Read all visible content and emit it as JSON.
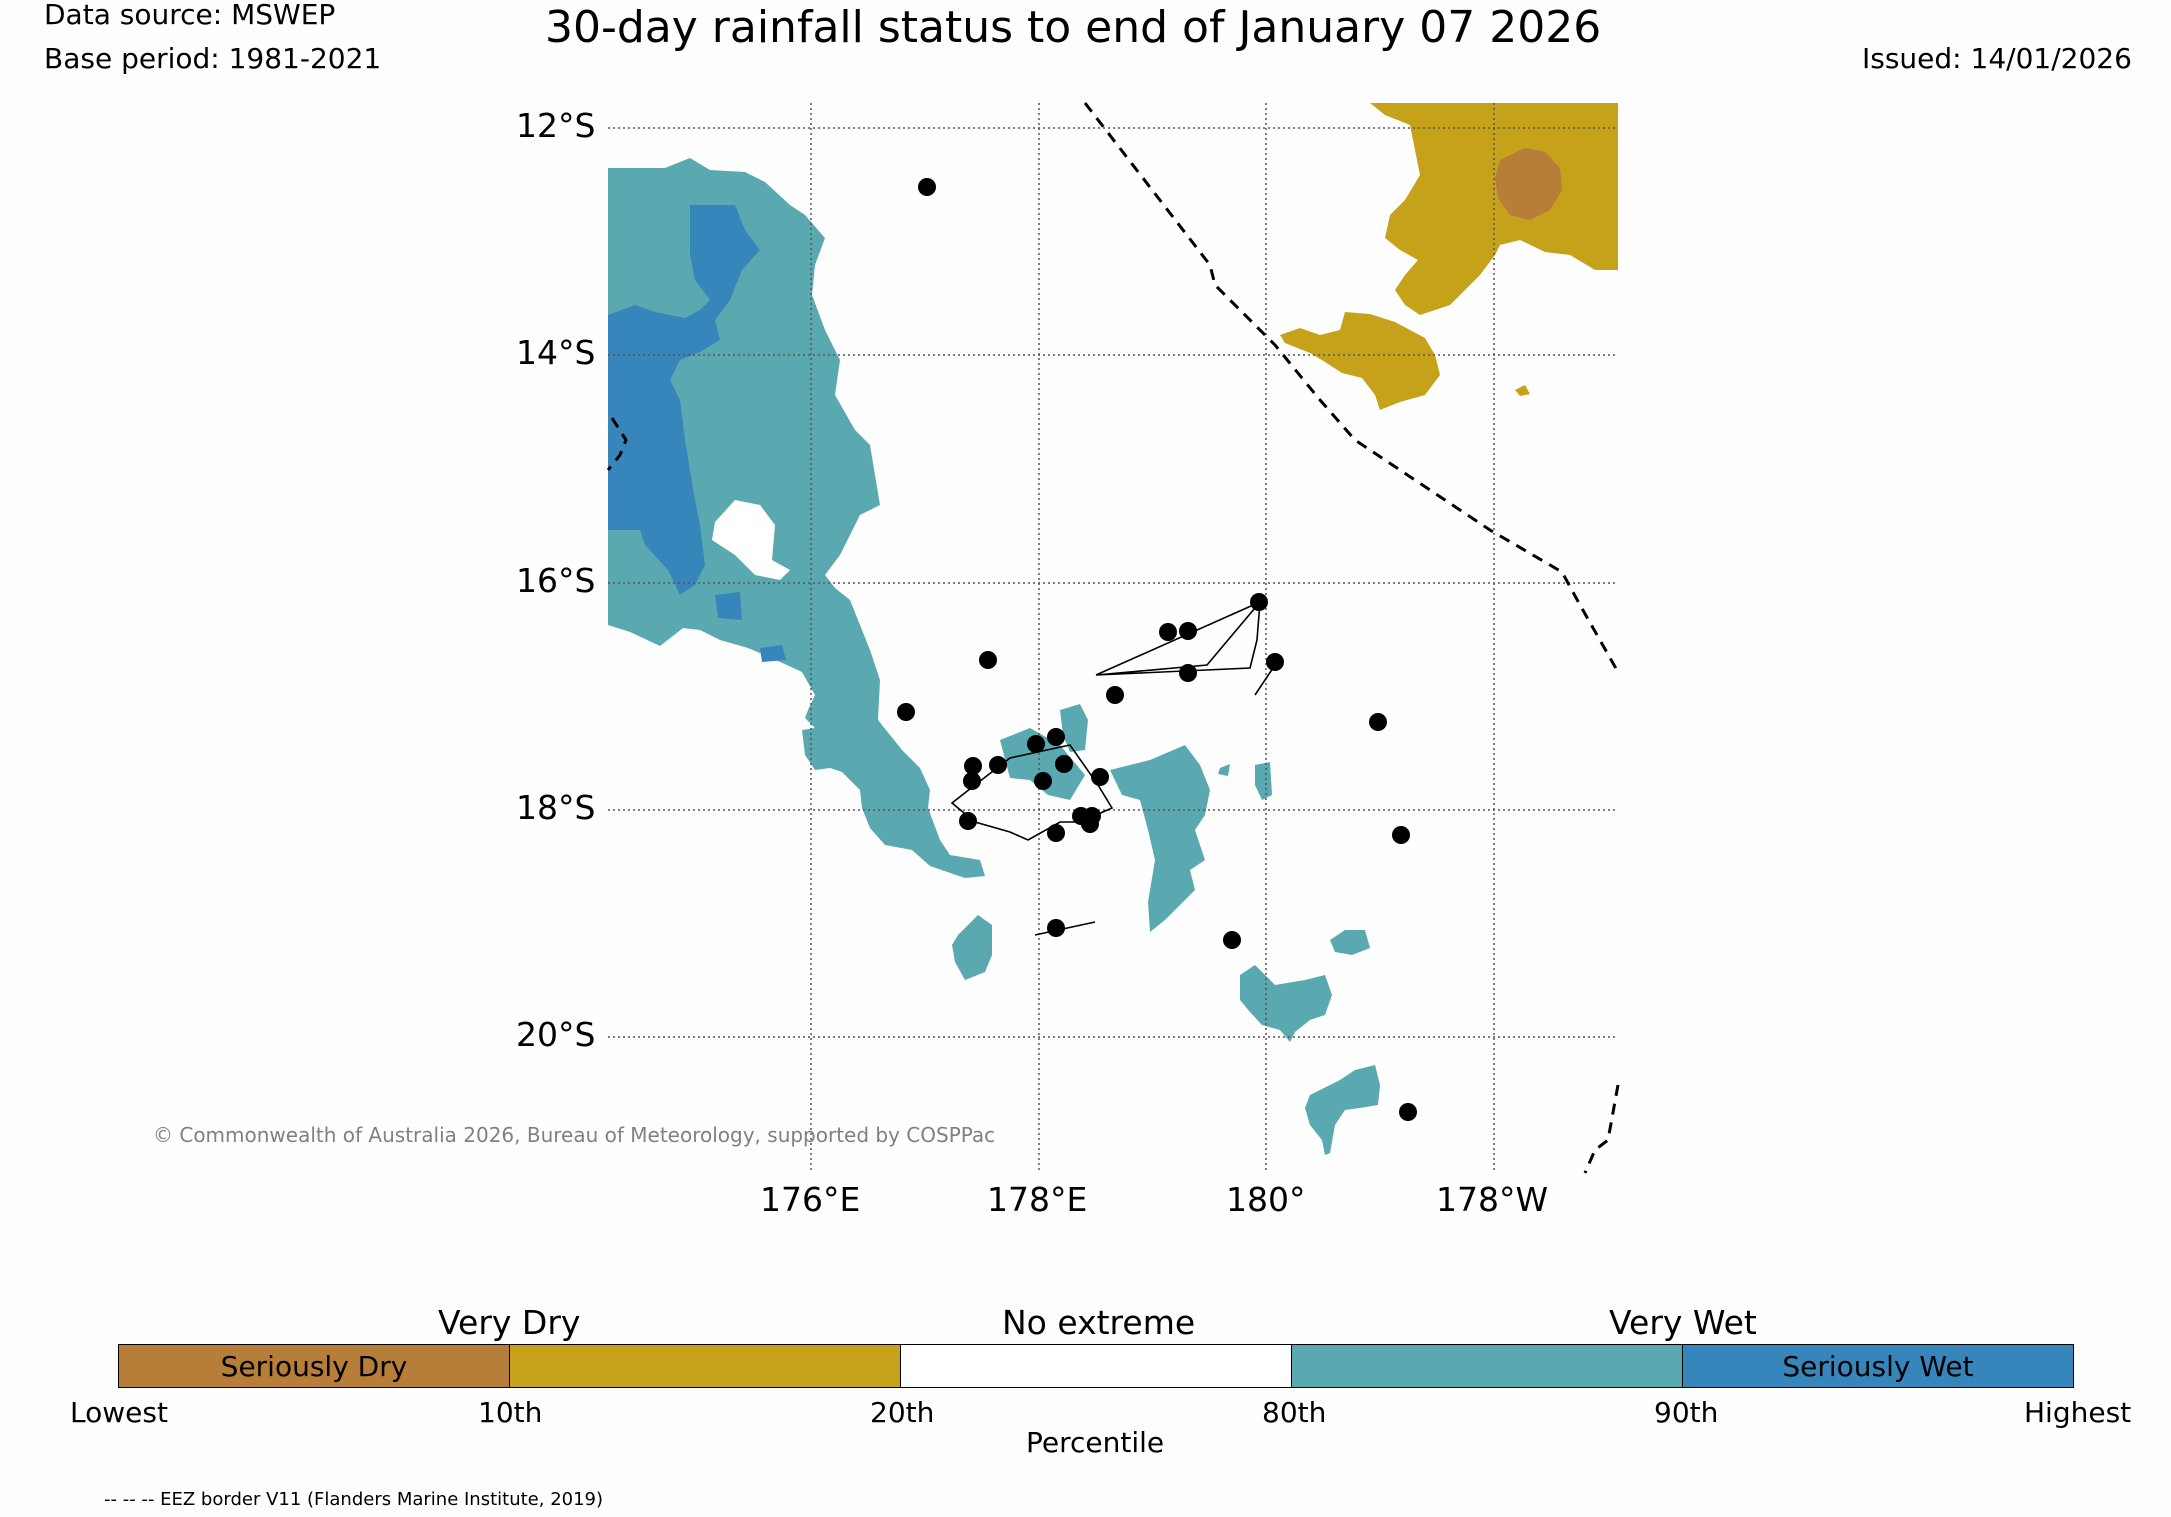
{
  "header": {
    "data_source": "Data source: MSWEP",
    "base_period": "Base period: 1981-2021",
    "title": "30-day rainfall status to end of January 07 2026",
    "issued": "Issued: 14/01/2026"
  },
  "map": {
    "lat_labels": [
      "12°S",
      "14°S",
      "16°S",
      "18°S",
      "20°S"
    ],
    "lon_labels": [
      "176°E",
      "178°E",
      "180°",
      "178°W"
    ],
    "copyright": "© Commonwealth of Australia 2026, Bureau of Meteorology, supported by COSPPac",
    "colors": {
      "seriously_dry": "#b67e38",
      "very_dry": "#c5a21a",
      "no_extreme": "#ffffff",
      "very_wet": "#5ba9b0",
      "seriously_wet": "#3786bb",
      "station": "#000000"
    }
  },
  "legend": {
    "bands": [
      "Very Dry",
      "No extreme",
      "Very Wet"
    ],
    "segments": [
      {
        "label": "Seriously Dry",
        "color": "#b67e38"
      },
      {
        "label": "",
        "color": "#c5a21a"
      },
      {
        "label": "",
        "color": "#ffffff"
      },
      {
        "label": "",
        "color": "#5ba9b0"
      },
      {
        "label": "Seriously Wet",
        "color": "#3786bb"
      }
    ],
    "ticks": [
      "Lowest",
      "10th",
      "20th",
      "80th",
      "90th",
      "Highest"
    ],
    "axis_title": "Percentile"
  },
  "footer": {
    "eez_note": "-- -- -- EEZ border V11 (Flanders Marine Institute, 2019)"
  }
}
